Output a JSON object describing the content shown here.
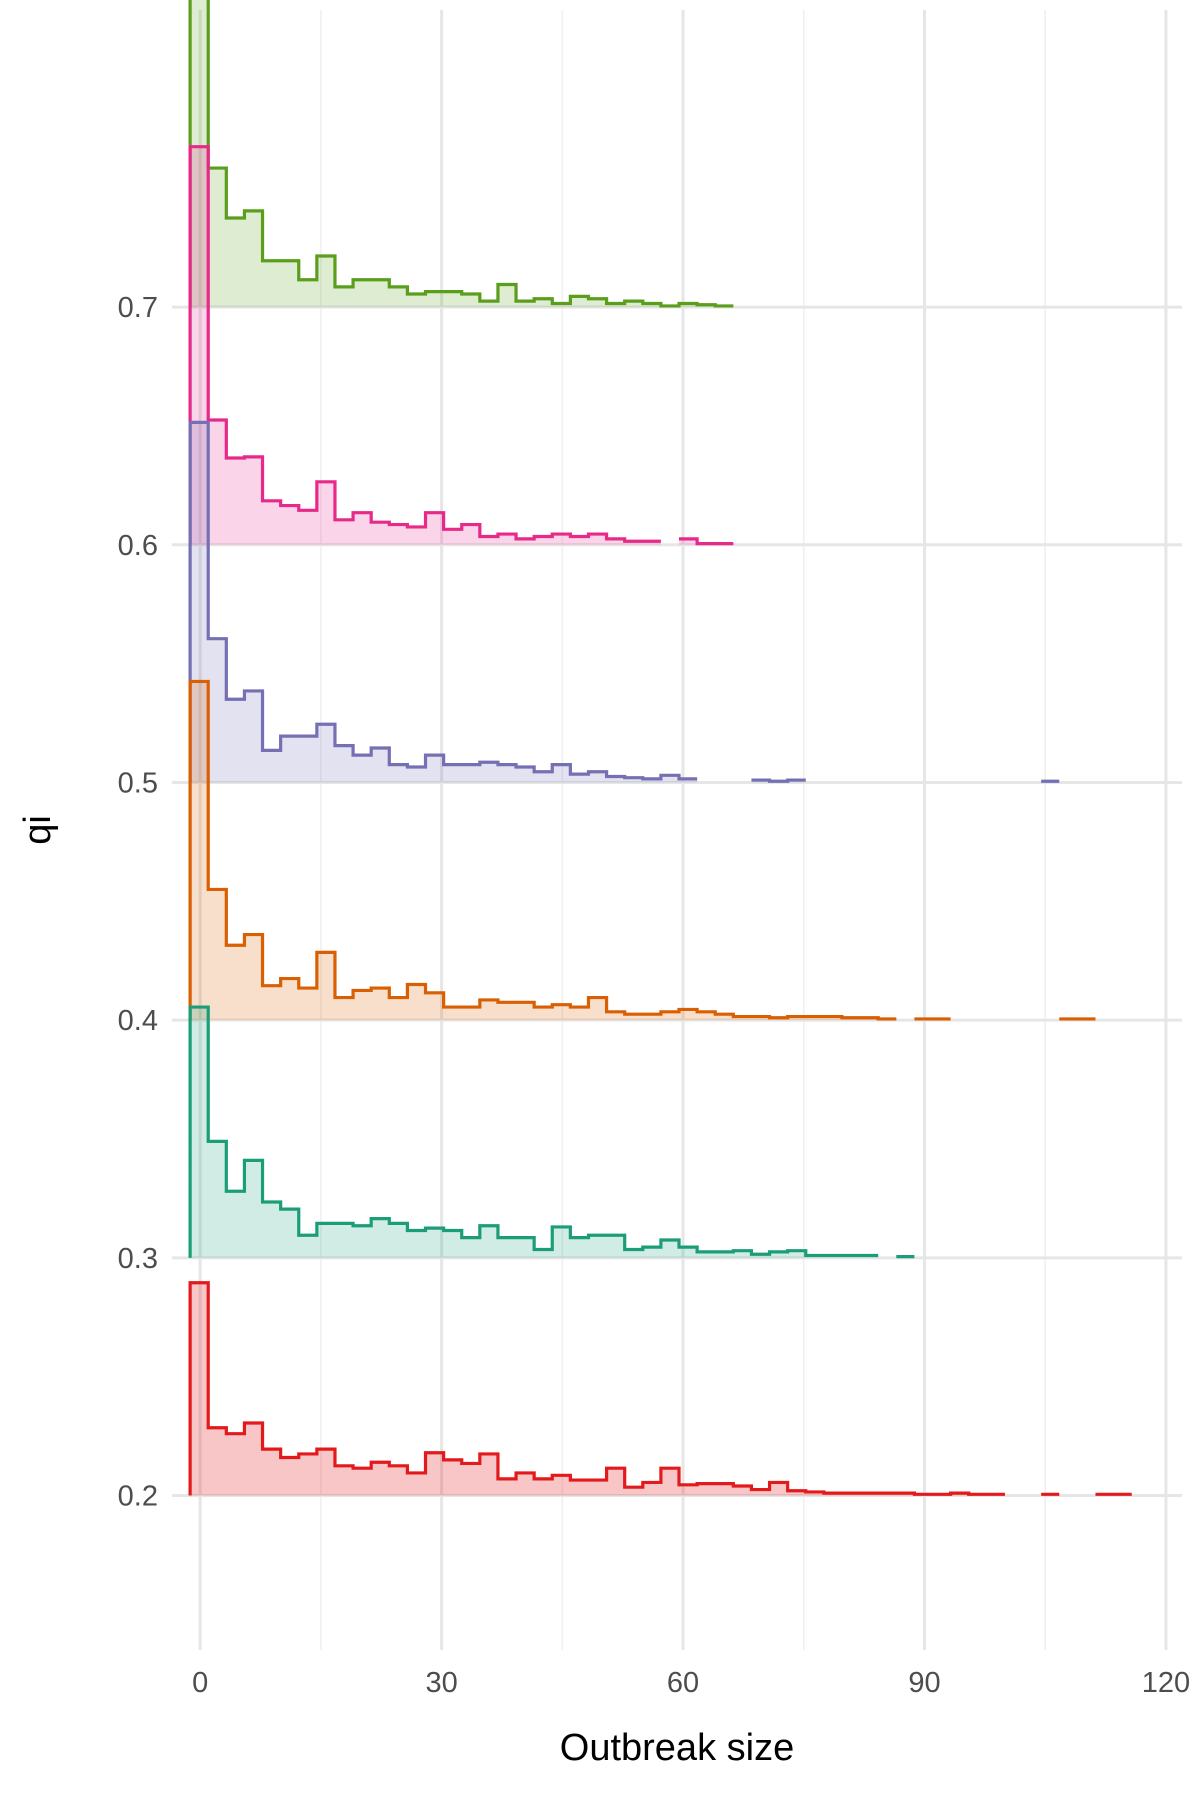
{
  "chart_data": {
    "type": "area",
    "title": "",
    "xlabel": "Outbreak size",
    "ylabel": "qi",
    "xlim": [
      -3.5,
      122
    ],
    "ylim": [
      0.135,
      0.825
    ],
    "x_ticks": [
      0,
      30,
      60,
      90,
      120
    ],
    "y_ticks": [
      0.2,
      0.3,
      0.4,
      0.5,
      0.6,
      0.7
    ],
    "x_minor": [
      15,
      45,
      75,
      105
    ],
    "grid": true,
    "legend": "none",
    "bin_width": 2.25,
    "series": [
      {
        "qi": 0.2,
        "color": "#e31a1c",
        "x_start": -1.25,
        "heights": [
          0.0895,
          0.0285,
          0.026,
          0.0305,
          0.0195,
          0.016,
          0.0175,
          0.0195,
          0.0125,
          0.0115,
          0.014,
          0.0125,
          0.0095,
          0.018,
          0.015,
          0.0135,
          0.0175,
          0.007,
          0.0095,
          0.007,
          0.0085,
          0.0065,
          0.0065,
          0.0115,
          0.0035,
          0.0055,
          0.0115,
          0.0045,
          0.005,
          0.005,
          0.004,
          0.0025,
          0.0055,
          0.002,
          0.0015,
          0.001,
          0.001,
          0.001,
          0.001,
          0.001,
          0.0005,
          0.0005,
          0.001,
          0.0005,
          0.0005,
          null,
          null,
          0.0005,
          null,
          null,
          0.0005,
          0.0005
        ],
        "fill_opacity": 0.25
      },
      {
        "qi": 0.3,
        "color": "#1b9e77",
        "x_start": -1.25,
        "heights": [
          0.1055,
          0.049,
          0.028,
          0.041,
          0.0235,
          0.0205,
          0.0095,
          0.0145,
          0.0145,
          0.0135,
          0.0165,
          0.0145,
          0.0115,
          0.0125,
          0.0115,
          0.0085,
          0.0135,
          0.0085,
          0.0085,
          0.0035,
          0.013,
          0.0085,
          0.0095,
          0.0095,
          0.0035,
          0.0045,
          0.0075,
          0.0045,
          0.0025,
          0.0025,
          0.003,
          0.0015,
          0.0025,
          0.003,
          0.001,
          0.001,
          0.001,
          0.001,
          null,
          0.0005,
          null
        ],
        "fill_opacity": 0.2
      },
      {
        "qi": 0.4,
        "color": "#d95f02",
        "x_start": -1.25,
        "heights": [
          0.1425,
          0.055,
          0.0315,
          0.036,
          0.0145,
          0.0175,
          0.0135,
          0.0285,
          0.0095,
          0.0125,
          0.0135,
          0.0095,
          0.015,
          0.0115,
          0.0055,
          0.0055,
          0.0085,
          0.0075,
          0.0075,
          0.0055,
          0.0065,
          0.0055,
          0.0095,
          0.0035,
          0.0025,
          0.0025,
          0.0035,
          0.0045,
          0.0035,
          0.0025,
          0.0015,
          0.0015,
          0.001,
          0.0015,
          0.0015,
          0.0015,
          0.001,
          0.001,
          0.0005,
          null,
          0.0005,
          0.0005,
          null,
          null,
          null,
          null,
          null,
          null,
          0.0005,
          0.0005
        ],
        "fill_opacity": 0.2
      },
      {
        "qi": 0.5,
        "color": "#7570b3",
        "x_start": -1.25,
        "heights": [
          0.1515,
          0.0605,
          0.035,
          0.0385,
          0.0135,
          0.0195,
          0.0195,
          0.0245,
          0.0155,
          0.0115,
          0.0145,
          0.0075,
          0.0065,
          0.0115,
          0.0075,
          0.0075,
          0.0085,
          0.0075,
          0.0065,
          0.0045,
          0.0075,
          0.0035,
          0.0045,
          0.0025,
          0.002,
          0.0015,
          0.003,
          0.0015,
          null,
          null,
          null,
          0.001,
          0.0005,
          0.001,
          null,
          null,
          null,
          null,
          null,
          null,
          null,
          null,
          null,
          null,
          null,
          null,
          null,
          0.0005
        ],
        "fill_opacity": 0.2
      },
      {
        "qi": 0.6,
        "color": "#e7298a",
        "x_start": -1.25,
        "heights": [
          0.1675,
          0.0525,
          0.0365,
          0.037,
          0.0185,
          0.0165,
          0.0145,
          0.0265,
          0.0105,
          0.0135,
          0.0095,
          0.0085,
          0.0075,
          0.0135,
          0.0065,
          0.0085,
          0.0035,
          0.0045,
          0.0025,
          0.0035,
          0.0045,
          0.0035,
          0.0045,
          0.0025,
          0.0015,
          0.0015,
          null,
          0.0025,
          0.0005,
          0.0005
        ],
        "fill_opacity": 0.2
      },
      {
        "qi": 0.7,
        "color": "#5a9e1c",
        "x_start": -1.25,
        "heights": [
          0.179,
          0.0585,
          0.0375,
          0.0405,
          0.0195,
          0.0195,
          0.0115,
          0.0215,
          0.0085,
          0.0115,
          0.0115,
          0.0085,
          0.0055,
          0.0065,
          0.0065,
          0.0055,
          0.0025,
          0.0095,
          0.0025,
          0.0035,
          0.0015,
          0.0045,
          0.0035,
          0.0015,
          0.0025,
          0.0015,
          0.0005,
          0.0015,
          0.001,
          0.0005
        ],
        "fill_opacity": 0.2
      }
    ]
  }
}
